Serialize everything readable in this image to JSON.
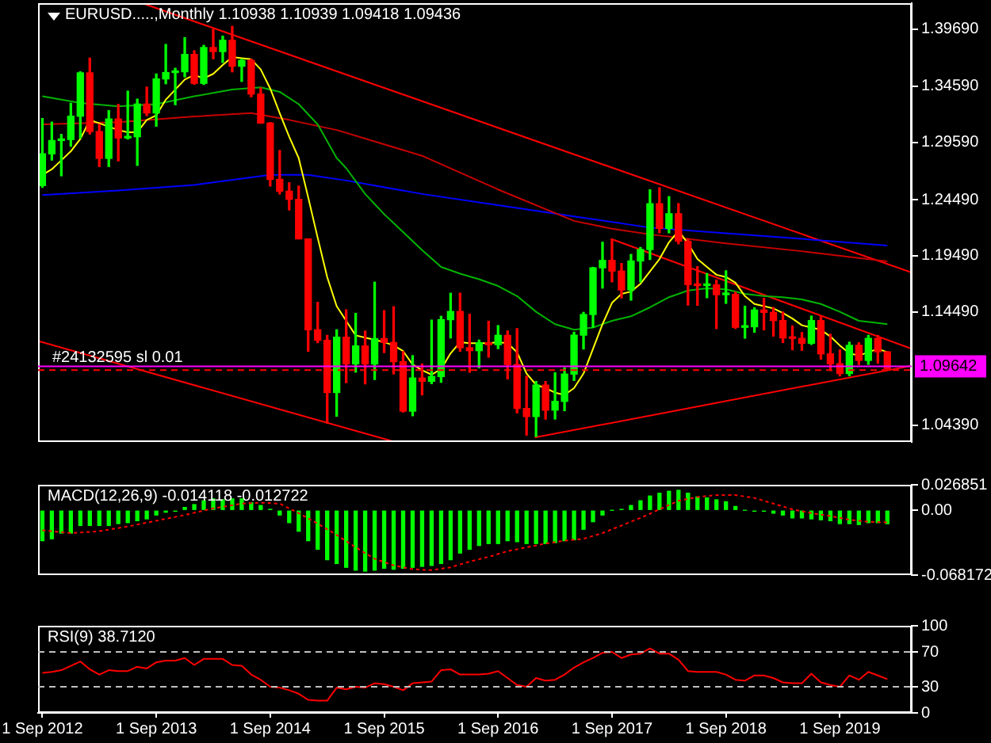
{
  "chart_data": [
    {
      "type": "candlestick",
      "title": "EURUSD.....,Monthly 1.10938 1.10939 1.09418 1.09436",
      "x": [
        "2012-09",
        "2012-10",
        "2012-11",
        "2012-12",
        "2013-01",
        "2013-02",
        "2013-03",
        "2013-04",
        "2013-05",
        "2013-06",
        "2013-07",
        "2013-08",
        "2013-09",
        "2013-10",
        "2013-11",
        "2013-12",
        "2014-01",
        "2014-02",
        "2014-03",
        "2014-04",
        "2014-05",
        "2014-06",
        "2014-07",
        "2014-08",
        "2014-09",
        "2014-10",
        "2014-11",
        "2014-12",
        "2015-01",
        "2015-02",
        "2015-03",
        "2015-04",
        "2015-05",
        "2015-06",
        "2015-07",
        "2015-08",
        "2015-09",
        "2015-10",
        "2015-11",
        "2015-12",
        "2016-01",
        "2016-02",
        "2016-03",
        "2016-04",
        "2016-05",
        "2016-06",
        "2016-07",
        "2016-08",
        "2016-09",
        "2016-10",
        "2016-11",
        "2016-12",
        "2017-01",
        "2017-02",
        "2017-03",
        "2017-04",
        "2017-05",
        "2017-06",
        "2017-07",
        "2017-08",
        "2017-09",
        "2017-10",
        "2017-11",
        "2017-12",
        "2018-01",
        "2018-02",
        "2018-03",
        "2018-04",
        "2018-05",
        "2018-06",
        "2018-07",
        "2018-08",
        "2018-09",
        "2018-10",
        "2018-11",
        "2018-12",
        "2019-01",
        "2019-02",
        "2019-03",
        "2019-04",
        "2019-05",
        "2019-06",
        "2019-07",
        "2019-08",
        "2019-09",
        "2019-10",
        "2019-11",
        "2019-12",
        "2020-01",
        "2020-02"
      ],
      "ohlc": [
        [
          1.2575,
          1.3172,
          1.256,
          1.2858
        ],
        [
          1.2858,
          1.314,
          1.2802,
          1.2976
        ],
        [
          1.2976,
          1.303,
          1.2662,
          1.2985
        ],
        [
          1.2985,
          1.3308,
          1.2925,
          1.3193
        ],
        [
          1.3193,
          1.3588,
          1.2998,
          1.3579
        ],
        [
          1.3579,
          1.3711,
          1.3034,
          1.3056
        ],
        [
          1.3056,
          1.312,
          1.2745,
          1.2817
        ],
        [
          1.2817,
          1.3243,
          1.2745,
          1.3168
        ],
        [
          1.3168,
          1.3298,
          1.2795,
          1.2999
        ],
        [
          1.2999,
          1.3416,
          1.299,
          1.301
        ],
        [
          1.301,
          1.3345,
          1.2755,
          1.3301
        ],
        [
          1.3301,
          1.3452,
          1.3198,
          1.3222
        ],
        [
          1.3222,
          1.3569,
          1.3104,
          1.3525
        ],
        [
          1.3525,
          1.3832,
          1.3482,
          1.3582
        ],
        [
          1.3582,
          1.362,
          1.3296,
          1.3589
        ],
        [
          1.3589,
          1.3893,
          1.3543,
          1.3743
        ],
        [
          1.3743,
          1.3775,
          1.3478,
          1.3486
        ],
        [
          1.3486,
          1.3824,
          1.3476,
          1.3805
        ],
        [
          1.3805,
          1.3967,
          1.3705,
          1.3769
        ],
        [
          1.3769,
          1.3906,
          1.3672,
          1.3869
        ],
        [
          1.3869,
          1.3993,
          1.3588,
          1.3638
        ],
        [
          1.3638,
          1.37,
          1.3503,
          1.369
        ],
        [
          1.369,
          1.37,
          1.3366,
          1.339
        ],
        [
          1.339,
          1.3445,
          1.3129,
          1.3132
        ],
        [
          1.3132,
          1.3136,
          1.2571,
          1.263
        ],
        [
          1.263,
          1.2887,
          1.25,
          1.2525
        ],
        [
          1.2525,
          1.26,
          1.2358,
          1.2452
        ],
        [
          1.2452,
          1.257,
          1.21,
          1.21
        ],
        [
          1.21,
          1.21,
          1.1098,
          1.129
        ],
        [
          1.129,
          1.1534,
          1.1175,
          1.1196
        ],
        [
          1.1196,
          1.124,
          1.0458,
          1.0731
        ],
        [
          1.0731,
          1.129,
          1.052,
          1.1224
        ],
        [
          1.1224,
          1.1467,
          1.0819,
          1.0986
        ],
        [
          1.0986,
          1.1436,
          1.0913,
          1.1146
        ],
        [
          1.1146,
          1.1278,
          1.0808,
          1.0985
        ],
        [
          1.0985,
          1.1714,
          1.0847,
          1.1211
        ],
        [
          1.1211,
          1.146,
          1.1087,
          1.1177
        ],
        [
          1.1177,
          1.1495,
          1.0897,
          1.1006
        ],
        [
          1.1006,
          1.1095,
          1.0557,
          1.0565
        ],
        [
          1.0565,
          1.1059,
          1.0524,
          1.086
        ],
        [
          1.086,
          1.0985,
          1.071,
          1.0831
        ],
        [
          1.0831,
          1.1376,
          1.081,
          1.0873
        ],
        [
          1.0873,
          1.141,
          1.0822,
          1.138
        ],
        [
          1.138,
          1.1615,
          1.1217,
          1.1453
        ],
        [
          1.1453,
          1.1616,
          1.1098,
          1.113
        ],
        [
          1.113,
          1.1428,
          1.0912,
          1.1104
        ],
        [
          1.1104,
          1.1198,
          1.0952,
          1.1175
        ],
        [
          1.1175,
          1.1366,
          1.1046,
          1.1157
        ],
        [
          1.1157,
          1.1327,
          1.1122,
          1.124
        ],
        [
          1.124,
          1.1279,
          1.0852,
          1.098
        ],
        [
          1.098,
          1.13,
          1.055,
          1.0589
        ],
        [
          1.0589,
          1.0875,
          1.0352,
          1.0517
        ],
        [
          1.0517,
          1.0829,
          1.034,
          1.0797
        ],
        [
          1.0797,
          1.0829,
          1.0494,
          1.0574
        ],
        [
          1.0574,
          1.0906,
          1.0495,
          1.0652
        ],
        [
          1.0652,
          1.095,
          1.0569,
          1.0895
        ],
        [
          1.0895,
          1.1268,
          1.0839,
          1.1242
        ],
        [
          1.1242,
          1.1445,
          1.1119,
          1.1426
        ],
        [
          1.1426,
          1.1846,
          1.1313,
          1.1842
        ],
        [
          1.1842,
          1.207,
          1.1662,
          1.1908
        ],
        [
          1.1908,
          1.2092,
          1.1717,
          1.1813
        ],
        [
          1.1813,
          1.188,
          1.1574,
          1.1645
        ],
        [
          1.1645,
          1.1961,
          1.1554,
          1.1903
        ],
        [
          1.1903,
          1.2023,
          1.1717,
          1.2005
        ],
        [
          1.2005,
          1.2537,
          1.1916,
          1.2413
        ],
        [
          1.2413,
          1.2555,
          1.2154,
          1.2193
        ],
        [
          1.2193,
          1.2476,
          1.2154,
          1.2324
        ],
        [
          1.2324,
          1.2414,
          1.2056,
          1.2079
        ],
        [
          1.2079,
          1.2097,
          1.151,
          1.1693
        ],
        [
          1.1693,
          1.1852,
          1.1508,
          1.1684
        ],
        [
          1.1684,
          1.1791,
          1.1576,
          1.169
        ],
        [
          1.169,
          1.1733,
          1.1301,
          1.1603
        ],
        [
          1.1603,
          1.1815,
          1.1526,
          1.1605
        ],
        [
          1.1605,
          1.1625,
          1.1302,
          1.1312
        ],
        [
          1.1312,
          1.15,
          1.1215,
          1.1317
        ],
        [
          1.1317,
          1.1486,
          1.1268,
          1.1466
        ],
        [
          1.1466,
          1.157,
          1.1289,
          1.1445
        ],
        [
          1.1445,
          1.1488,
          1.1234,
          1.1372
        ],
        [
          1.1372,
          1.1448,
          1.1176,
          1.1217
        ],
        [
          1.1217,
          1.1324,
          1.1112,
          1.1213
        ],
        [
          1.1213,
          1.1265,
          1.1107,
          1.117
        ],
        [
          1.117,
          1.1412,
          1.116,
          1.1372
        ],
        [
          1.1372,
          1.1412,
          1.1028,
          1.1075
        ],
        [
          1.1075,
          1.125,
          1.0927,
          1.0987
        ],
        [
          1.0987,
          1.111,
          1.0879,
          1.09
        ],
        [
          1.09,
          1.1179,
          1.088,
          1.1151
        ],
        [
          1.1151,
          1.1175,
          1.0981,
          1.1017
        ],
        [
          1.1017,
          1.124,
          1.0982,
          1.1213
        ],
        [
          1.1213,
          1.1239,
          1.0992,
          1.1093
        ],
        [
          1.10938,
          1.10939,
          1.09418,
          1.09436
        ]
      ],
      "colors": [
        "#00ff00",
        "#00ff00",
        "#00ff00",
        "#00ff00",
        "#00ff00",
        "#ff0000",
        "#ff0000",
        "#00ff00",
        "#ff0000",
        "#00ff00",
        "#00ff00",
        "#ff0000",
        "#00ff00",
        "#00ff00",
        "#00ff00",
        "#00ff00",
        "#ff0000",
        "#00ff00",
        "#ff0000",
        "#00ff00",
        "#ff0000",
        "#00ff00",
        "#ff0000",
        "#ff0000",
        "#ff0000",
        "#ff0000",
        "#ff0000",
        "#ff0000",
        "#ff0000",
        "#ff0000",
        "#ff0000",
        "#00ff00",
        "#ff0000",
        "#00ff00",
        "#ff0000",
        "#00ff00",
        "#ff0000",
        "#ff0000",
        "#ff0000",
        "#00ff00",
        "#ff0000",
        "#00ff00",
        "#00ff00",
        "#00ff00",
        "#ff0000",
        "#ff0000",
        "#00ff00",
        "#ff0000",
        "#00ff00",
        "#ff0000",
        "#ff0000",
        "#ff0000",
        "#00ff00",
        "#ff0000",
        "#00ff00",
        "#00ff00",
        "#00ff00",
        "#00ff00",
        "#00ff00",
        "#00ff00",
        "#ff0000",
        "#ff0000",
        "#00ff00",
        "#00ff00",
        "#00ff00",
        "#ff0000",
        "#00ff00",
        "#ff0000",
        "#ff0000",
        "#ff0000",
        "#00ff00",
        "#ff0000",
        "#00ff00",
        "#ff0000",
        "#00ff00",
        "#00ff00",
        "#ff0000",
        "#ff0000",
        "#ff0000",
        "#ff0000",
        "#ff0000",
        "#00ff00",
        "#ff0000",
        "#ff0000",
        "#ff0000",
        "#00ff00",
        "#ff0000",
        "#00ff00",
        "#ff0000",
        "#ff0000"
      ],
      "series": [
        {
          "type": "line",
          "color": "#ffff00",
          "values": [
            1.267,
            1.272,
            1.28,
            1.288,
            1.299,
            1.316,
            1.313,
            1.31,
            1.307,
            1.305,
            1.305,
            1.316,
            1.32,
            1.334,
            1.343,
            1.352,
            1.356,
            1.353,
            1.357,
            1.365,
            1.372,
            1.371,
            1.37,
            1.361,
            1.344,
            1.322,
            1.301,
            1.282,
            1.247,
            1.211,
            1.176,
            1.15,
            1.137,
            1.124,
            1.122,
            1.12,
            1.118,
            1.115,
            1.11,
            1.098,
            1.093,
            1.089,
            1.094,
            1.108,
            1.118,
            1.117,
            1.117,
            1.117,
            1.118,
            1.117,
            1.109,
            1.09,
            1.08,
            1.077,
            1.073,
            1.071,
            1.077,
            1.09,
            1.112,
            1.134,
            1.153,
            1.161,
            1.163,
            1.17,
            1.181,
            1.192,
            1.207,
            1.217,
            1.206,
            1.192,
            1.185,
            1.178,
            1.176,
            1.171,
            1.159,
            1.152,
            1.15,
            1.148,
            1.144,
            1.139,
            1.133,
            1.131,
            1.129,
            1.123,
            1.115,
            1.108,
            1.106,
            1.109,
            1.112,
            1.109
          ]
        },
        {
          "type": "line",
          "color": "#00b400",
          "x": [
            "2012-09",
            "2013-01",
            "2013-05",
            "2013-09",
            "2014-01",
            "2014-05",
            "2014-08",
            "2014-10",
            "2014-12",
            "2015-02",
            "2015-04",
            "2015-05",
            "2015-07",
            "2015-09",
            "2015-11",
            "2016-01",
            "2016-03",
            "2016-05",
            "2016-07",
            "2016-09",
            "2016-11",
            "2017-01",
            "2017-03",
            "2017-05",
            "2017-07",
            "2017-09",
            "2017-11",
            "2018-01",
            "2018-03",
            "2018-05",
            "2018-07",
            "2018-09",
            "2018-11",
            "2019-01",
            "2019-03",
            "2019-05",
            "2019-07",
            "2019-09",
            "2019-11",
            "2020-01",
            "2020-02"
          ],
          "values": [
            1.337,
            1.331,
            1.328,
            1.33,
            1.337,
            1.343,
            1.345,
            1.341,
            1.33,
            1.312,
            1.282,
            1.273,
            1.25,
            1.232,
            1.216,
            1.2,
            1.185,
            1.179,
            1.174,
            1.168,
            1.159,
            1.145,
            1.134,
            1.129,
            1.131,
            1.137,
            1.141,
            1.149,
            1.158,
            1.164,
            1.166,
            1.165,
            1.161,
            1.159,
            1.158,
            1.156,
            1.152,
            1.145,
            1.137,
            1.135,
            1.134
          ]
        },
        {
          "type": "line",
          "color": "#c80000",
          "x": [
            "2012-09",
            "2013-05",
            "2014-01",
            "2014-07",
            "2014-11",
            "2015-04",
            "2016-01",
            "2016-09",
            "2017-05",
            "2017-09",
            "2018-01",
            "2018-09",
            "2019-05",
            "2020-02"
          ],
          "values": [
            1.312,
            1.314,
            1.319,
            1.322,
            1.316,
            1.307,
            1.284,
            1.254,
            1.226,
            1.219,
            1.214,
            1.206,
            1.199,
            1.19
          ]
        },
        {
          "type": "line",
          "color": "#0000ff",
          "x": [
            "2012-09",
            "2013-05",
            "2014-01",
            "2014-09",
            "2015-01",
            "2015-05",
            "2016-01",
            "2016-09",
            "2017-05",
            "2018-01",
            "2018-09",
            "2019-05",
            "2020-02"
          ],
          "values": [
            1.249,
            1.253,
            1.258,
            1.267,
            1.267,
            1.262,
            1.25,
            1.24,
            1.23,
            1.22,
            1.215,
            1.21,
            1.204
          ]
        },
        {
          "type": "line",
          "color": "#ff0000",
          "x": [
            "2013-07-17",
            "2020-04-18"
          ],
          "values": [
            1.42,
            1.18
          ]
        },
        {
          "type": "line",
          "color": "#ff0000",
          "x": [
            "2017-08-28",
            "2020-04-18"
          ],
          "values": [
            1.21,
            1.112
          ]
        },
        {
          "type": "line",
          "color": "#ff0000",
          "x": [
            "2016-12-28",
            "2020-04-18"
          ],
          "values": [
            1.033,
            1.097
          ]
        },
        {
          "type": "line",
          "color": "#ff0000",
          "x": [
            "2012-08-18",
            "2015-10-06"
          ],
          "values": [
            1.119,
            1.029
          ]
        }
      ],
      "xlim": [
        "2012-08-18",
        "2020-04-18"
      ],
      "ylim": [
        1.029,
        1.42
      ],
      "yticks": [
        {
          "value": 1.3969,
          "label": "1.39690"
        },
        {
          "value": 1.3459,
          "label": "1.34590"
        },
        {
          "value": 1.2959,
          "label": "1.29590"
        },
        {
          "value": 1.2449,
          "label": "1.24490"
        },
        {
          "value": 1.1949,
          "label": "1.19490"
        },
        {
          "value": 1.1449,
          "label": "1.14490"
        },
        {
          "value": 1.0439,
          "label": "1.04390"
        }
      ],
      "tick_labels": "y",
      "ref_lines": [
        {
          "axis": "y",
          "value": 1.09642,
          "label": "1.09642",
          "color": "#ff00ff"
        },
        {
          "axis": "y",
          "value": 1.093,
          "label": "#24132595 sl 0.01",
          "color": "#ff0000",
          "line_style": "dashed"
        }
      ]
    },
    {
      "type": "bar",
      "title": "MACD(12,26,9) -0.014118 -0.012722",
      "x": [
        "2012-09",
        "2012-10",
        "2012-11",
        "2012-12",
        "2013-01",
        "2013-02",
        "2013-03",
        "2013-04",
        "2013-05",
        "2013-06",
        "2013-07",
        "2013-08",
        "2013-09",
        "2013-10",
        "2013-11",
        "2013-12",
        "2014-01",
        "2014-02",
        "2014-03",
        "2014-04",
        "2014-05",
        "2014-06",
        "2014-07",
        "2014-08",
        "2014-09",
        "2014-10",
        "2014-11",
        "2014-12",
        "2015-01",
        "2015-02",
        "2015-03",
        "2015-04",
        "2015-05",
        "2015-06",
        "2015-07",
        "2015-08",
        "2015-09",
        "2015-10",
        "2015-11",
        "2015-12",
        "2016-01",
        "2016-02",
        "2016-03",
        "2016-04",
        "2016-05",
        "2016-06",
        "2016-07",
        "2016-08",
        "2016-09",
        "2016-10",
        "2016-11",
        "2016-12",
        "2017-01",
        "2017-02",
        "2017-03",
        "2017-04",
        "2017-05",
        "2017-06",
        "2017-07",
        "2017-08",
        "2017-09",
        "2017-10",
        "2017-11",
        "2017-12",
        "2018-01",
        "2018-02",
        "2018-03",
        "2018-04",
        "2018-05",
        "2018-06",
        "2018-07",
        "2018-08",
        "2018-09",
        "2018-10",
        "2018-11",
        "2018-12",
        "2019-01",
        "2019-02",
        "2019-03",
        "2019-04",
        "2019-05",
        "2019-06",
        "2019-07",
        "2019-08",
        "2019-09",
        "2019-10",
        "2019-11",
        "2019-12",
        "2020-01",
        "2020-02"
      ],
      "series": [
        {
          "color": "#00ff00",
          "values": [
            -0.032,
            -0.03,
            -0.024,
            -0.024,
            -0.016,
            -0.016,
            -0.016,
            -0.016,
            -0.014,
            -0.013,
            -0.011,
            -0.009,
            -0.005,
            -0.002,
            -0.001,
            0.003,
            0.006,
            0.01,
            0.012,
            0.011,
            0.012,
            0.012,
            0.008,
            0.005,
            0.001,
            -0.005,
            -0.013,
            -0.022,
            -0.032,
            -0.041,
            -0.052,
            -0.056,
            -0.06,
            -0.063,
            -0.064,
            -0.063,
            -0.061,
            -0.062,
            -0.061,
            -0.06,
            -0.059,
            -0.058,
            -0.056,
            -0.052,
            -0.045,
            -0.041,
            -0.037,
            -0.035,
            -0.035,
            -0.032,
            -0.033,
            -0.035,
            -0.035,
            -0.035,
            -0.034,
            -0.032,
            -0.031,
            -0.02,
            -0.012,
            -0.005,
            0,
            0.001,
            0.005,
            0.01,
            0.015,
            0.018,
            0.02,
            0.021,
            0.018,
            0.014,
            0.013,
            0.011,
            0.009,
            0.004,
            0,
            -0.001,
            -0.001,
            -0.003,
            -0.005,
            -0.008,
            -0.008,
            -0.009,
            -0.01,
            -0.011,
            -0.014,
            -0.014,
            -0.015,
            -0.013,
            -0.013,
            -0.014118
          ]
        },
        {
          "type": "line",
          "color": "#ff0000",
          "line_style": "dotted",
          "x": [
            "2012-09",
            "2012-12",
            "2013-03",
            "2013-06",
            "2013-09",
            "2013-12",
            "2014-03",
            "2014-06",
            "2014-08",
            "2014-10",
            "2014-12",
            "2015-02",
            "2015-04",
            "2015-06",
            "2015-08",
            "2015-10",
            "2015-12",
            "2016-02",
            "2016-04",
            "2016-06",
            "2016-08",
            "2016-10",
            "2016-12",
            "2017-02",
            "2017-04",
            "2017-06",
            "2017-08",
            "2017-10",
            "2017-12",
            "2018-02",
            "2018-04",
            "2018-06",
            "2018-08",
            "2018-10",
            "2018-12",
            "2019-02",
            "2019-04",
            "2019-06",
            "2019-08",
            "2019-10",
            "2019-12",
            "2020-02"
          ],
          "values": [
            -0.021,
            -0.024,
            -0.022,
            -0.017,
            -0.011,
            -0.005,
            0.002,
            0.007,
            0.008,
            0.007,
            -0.003,
            -0.014,
            -0.026,
            -0.039,
            -0.051,
            -0.058,
            -0.062,
            -0.063,
            -0.06,
            -0.054,
            -0.049,
            -0.043,
            -0.039,
            -0.035,
            -0.032,
            -0.03,
            -0.024,
            -0.016,
            -0.008,
            0.001,
            0.01,
            0.014,
            0.016,
            0.016,
            0.013,
            0.007,
            0.001,
            -0.003,
            -0.006,
            -0.01,
            -0.012,
            -0.012722
          ]
        }
      ],
      "xlim": [
        "2012-08-18",
        "2020-04-18"
      ],
      "ylim": [
        -0.068172,
        0.026851
      ],
      "yticks": [
        -0.068172,
        {
          "value": 0,
          "label": "0.00"
        },
        0.026851
      ],
      "tick_labels": "y"
    },
    {
      "type": "line",
      "title": "RSI(9) 38.7120",
      "x": [
        "2012-09",
        "2012-10",
        "2012-11",
        "2012-12",
        "2013-01",
        "2013-02",
        "2013-03",
        "2013-04",
        "2013-05",
        "2013-06",
        "2013-07",
        "2013-08",
        "2013-09",
        "2013-10",
        "2013-11",
        "2013-12",
        "2014-01",
        "2014-02",
        "2014-03",
        "2014-04",
        "2014-05",
        "2014-06",
        "2014-07",
        "2014-08",
        "2014-09",
        "2014-10",
        "2014-11",
        "2014-12",
        "2015-01",
        "2015-02",
        "2015-03",
        "2015-04",
        "2015-05",
        "2015-06",
        "2015-07",
        "2015-08",
        "2015-09",
        "2015-10",
        "2015-11",
        "2015-12",
        "2016-01",
        "2016-02",
        "2016-03",
        "2016-04",
        "2016-05",
        "2016-06",
        "2016-07",
        "2016-08",
        "2016-09",
        "2016-10",
        "2016-11",
        "2016-12",
        "2017-01",
        "2017-02",
        "2017-03",
        "2017-04",
        "2017-05",
        "2017-06",
        "2017-07",
        "2017-08",
        "2017-09",
        "2017-10",
        "2017-11",
        "2017-12",
        "2018-01",
        "2018-02",
        "2018-03",
        "2018-04",
        "2018-05",
        "2018-06",
        "2018-07",
        "2018-08",
        "2018-09",
        "2018-10",
        "2018-11",
        "2018-12",
        "2019-01",
        "2019-02",
        "2019-03",
        "2019-04",
        "2019-05",
        "2019-06",
        "2019-07",
        "2019-08",
        "2019-09",
        "2019-10",
        "2019-11",
        "2019-12",
        "2020-01",
        "2020-02"
      ],
      "values": [
        46,
        47,
        49,
        54,
        59,
        50,
        44,
        49,
        48,
        48,
        53,
        51,
        58,
        60,
        60,
        63,
        55,
        62,
        62,
        62,
        55,
        54,
        44,
        38,
        30,
        29,
        26,
        22,
        15,
        14,
        14,
        29,
        27,
        30,
        29,
        34,
        33,
        30,
        26,
        34,
        35,
        36,
        49,
        50,
        44,
        44,
        44,
        45,
        48,
        40,
        32,
        30,
        40,
        37,
        38,
        44,
        52,
        58,
        63,
        69,
        70,
        63,
        67,
        68,
        74,
        68,
        68,
        61,
        48,
        47,
        47,
        47,
        44,
        38,
        37,
        43,
        43,
        40,
        35,
        34,
        34,
        45,
        35,
        32,
        30,
        43,
        38,
        47,
        43,
        38.712
      ],
      "color": "#ff0000",
      "xlim": [
        "2012-08-18",
        "2020-04-18"
      ],
      "xticks": [
        {
          "value": "2012-09-01",
          "label": "1 Sep 2012"
        },
        {
          "value": "2013-09-01",
          "label": "1 Sep 2013"
        },
        {
          "value": "2014-09-01",
          "label": "1 Sep 2014"
        },
        {
          "value": "2015-09-01",
          "label": "1 Sep 2015"
        },
        {
          "value": "2016-09-01",
          "label": "1 Sep 2016"
        },
        {
          "value": "2017-09-01",
          "label": "1 Sep 2017"
        },
        {
          "value": "2018-09-01",
          "label": "1 Sep 2018"
        },
        {
          "value": "2019-09-01",
          "label": "1 Sep 2019"
        }
      ],
      "ylim": [
        0,
        100
      ],
      "yticks": [
        0,
        30,
        70,
        100
      ],
      "ref_lines": [
        {
          "axis": "y",
          "value": 70,
          "color": "#c0c0c0",
          "line_style": "dashed"
        },
        {
          "axis": "y",
          "value": 30,
          "color": "#c0c0c0",
          "line_style": "dashed"
        }
      ]
    }
  ]
}
